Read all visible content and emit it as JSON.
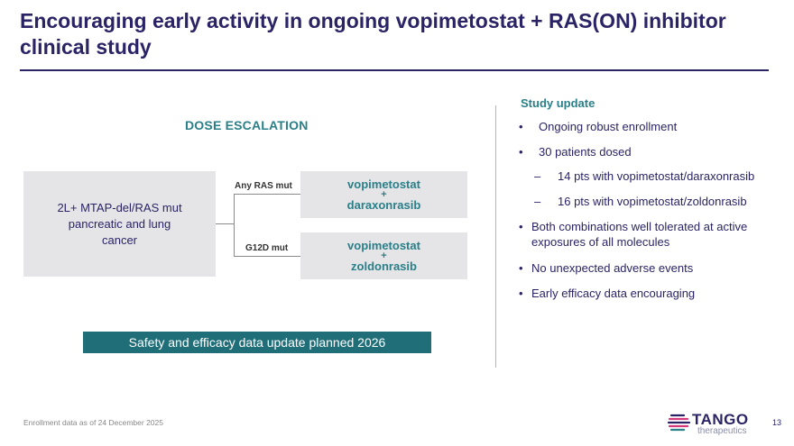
{
  "slide": {
    "title": "Encouraging early activity in ongoing vopimetostat + RAS(ON) inhibitor clinical study",
    "page_number": "13",
    "footnote": "Enrollment data as of 24 December 2025"
  },
  "dose_escalation": {
    "heading": "DOSE ESCALATION",
    "population": "2L+ MTAP-del/RAS mut pancreatic and lung cancer",
    "arms": [
      {
        "label": "Any RAS mut",
        "drug1": "vopimetostat",
        "plus": "+",
        "drug2": "daraxonrasib"
      },
      {
        "label": "G12D mut",
        "drug1": "vopimetostat",
        "plus": "+",
        "drug2": "zoldonrasib"
      }
    ],
    "banner": "Safety and efficacy data update planned 2026"
  },
  "study_update": {
    "heading": "Study update",
    "items": [
      {
        "marker": "•",
        "text": "Ongoing robust enrollment"
      },
      {
        "marker": "•",
        "text": "30 patients dosed"
      },
      {
        "marker": "–",
        "text": "14 pts with vopimetostat/daraxonrasib"
      },
      {
        "marker": "–",
        "text": "16 pts with vopimetostat/zoldonrasib"
      },
      {
        "marker": "•",
        "text": "Both combinations well tolerated at active exposures of all molecules"
      },
      {
        "marker": "•",
        "text": "No unexpected adverse events"
      },
      {
        "marker": "•",
        "text": "Early efficacy data encouraging"
      }
    ]
  },
  "logo": {
    "name": "TANGO",
    "sub": "therapeutics",
    "registered": "®",
    "colors": {
      "navy": "#2a2466",
      "pink": "#d43a7a",
      "teal": "#2a7f88"
    }
  }
}
